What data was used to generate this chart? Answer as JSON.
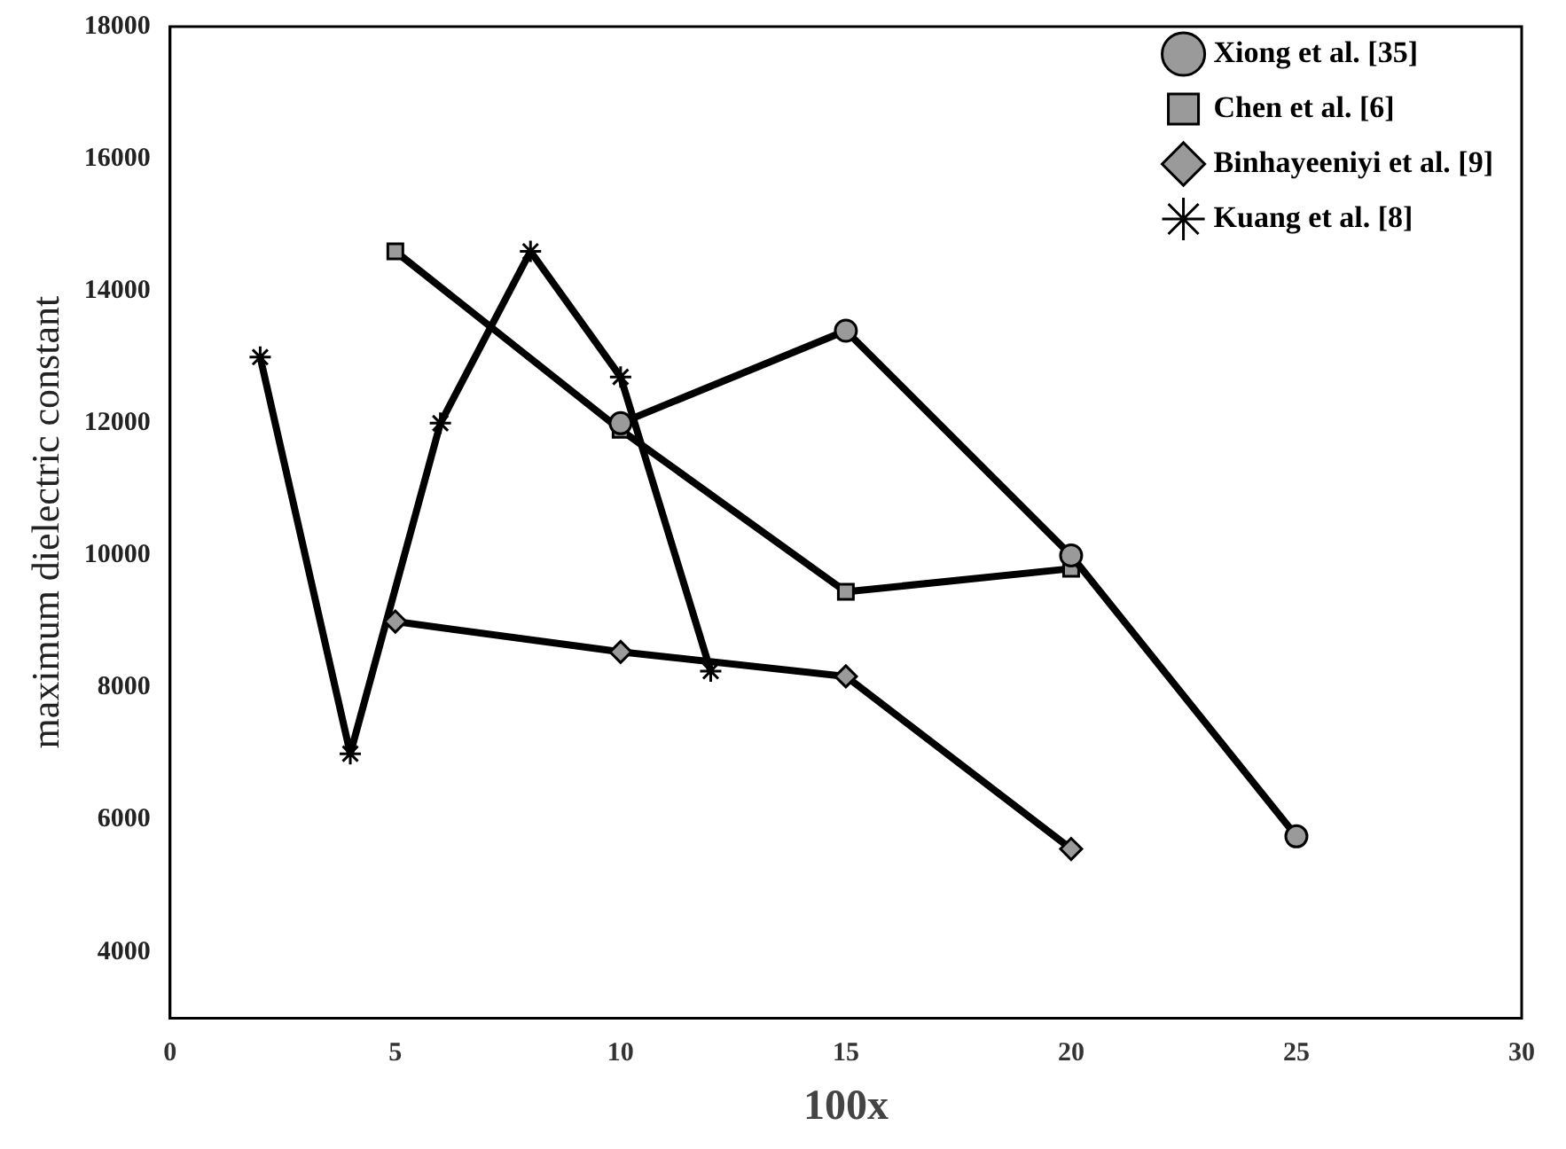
{
  "chart_data": {
    "type": "line",
    "xlabel": "100x",
    "ylabel": "maximum dielectric constant",
    "xlim": [
      0,
      30
    ],
    "xticks": [
      0,
      5,
      10,
      15,
      20,
      25,
      30
    ],
    "ylim": [
      3000,
      18000
    ],
    "yticks": [
      4000,
      6000,
      8000,
      10000,
      12000,
      14000,
      16000,
      18000
    ],
    "grid": false,
    "legend": "top right",
    "line_style": "solid",
    "series": [
      {
        "name": "Xiong et al. [35]",
        "color": "#000000",
        "marker": "circle",
        "x": [
          10,
          15,
          20,
          25
        ],
        "values": [
          12000,
          13400,
          10000,
          5750
        ]
      },
      {
        "name": "Chen et al. [6]",
        "color": "#000000",
        "marker": "square",
        "x": [
          5,
          10,
          15,
          20
        ],
        "values": [
          14600,
          11900,
          9450,
          9800
        ]
      },
      {
        "name": "Binhayeeniyi et al. [9]",
        "color": "#000000",
        "marker": "diamond",
        "x": [
          5,
          10,
          15,
          20
        ],
        "values": [
          9000,
          8540,
          8170,
          5560
        ]
      },
      {
        "name": "Kuang et al. [8]",
        "color": "#000000",
        "marker": "cross",
        "x": [
          2,
          4,
          6,
          8,
          10,
          12
        ],
        "values": [
          13000,
          7000,
          12000,
          14600,
          12700,
          8250
        ]
      }
    ]
  }
}
